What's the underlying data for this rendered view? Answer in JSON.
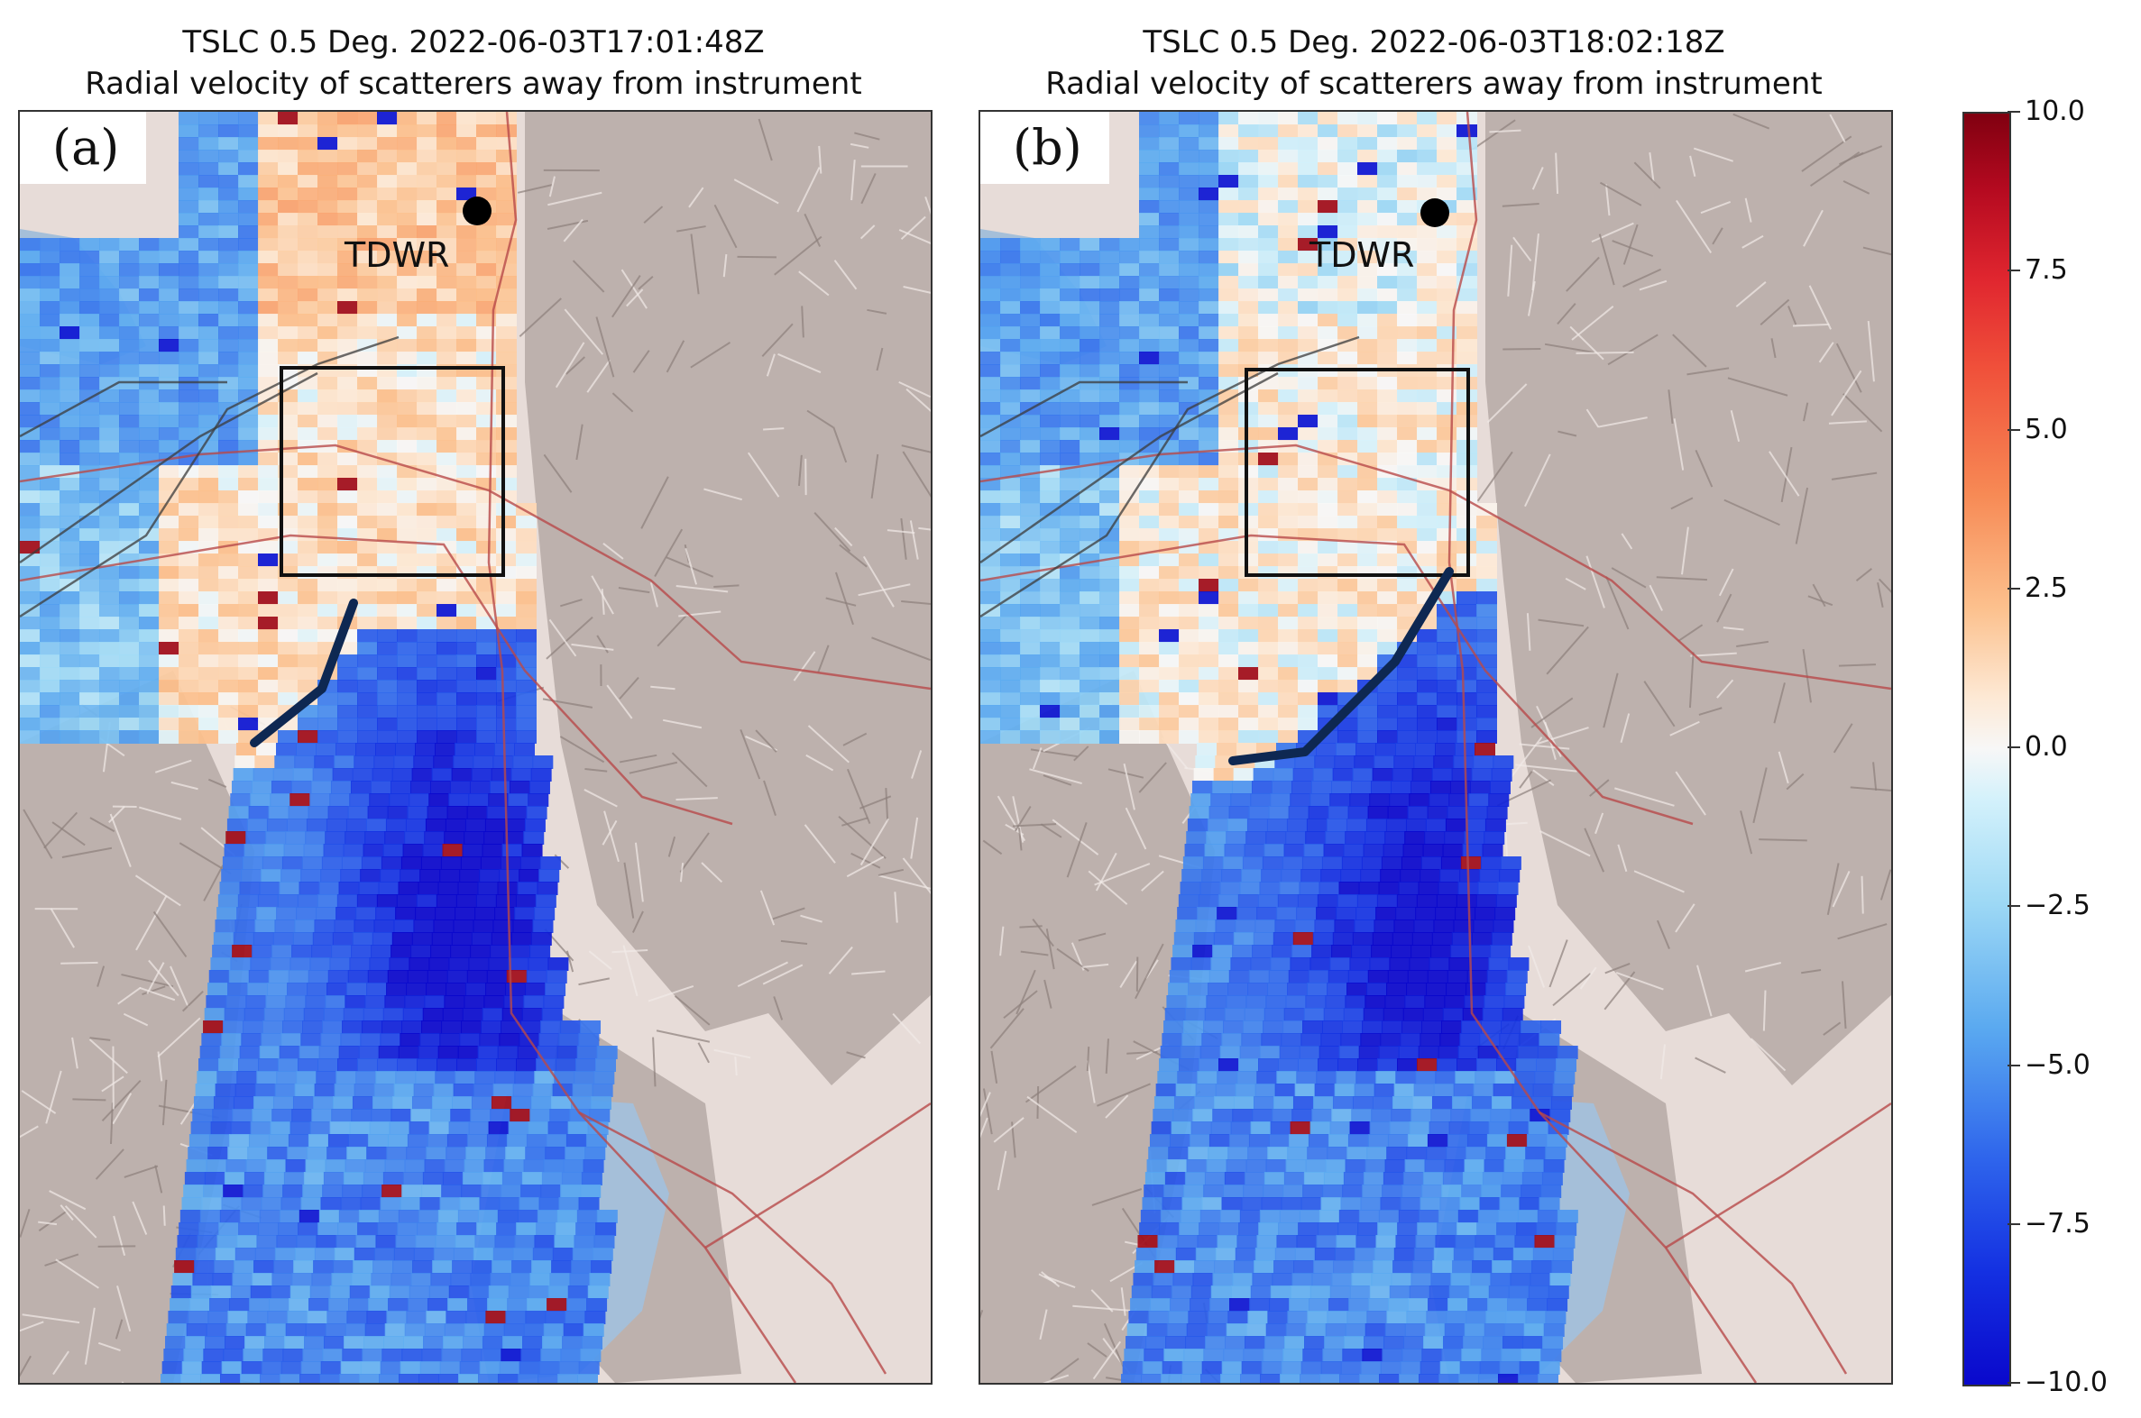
{
  "panels": [
    {
      "title_line1": "TSLC 0.5 Deg. 2022-06-03T17:01:48Z",
      "title_line2": "Radial velocity of scatterers away from instrument",
      "label": "(a)",
      "radar_label": "TDWR"
    },
    {
      "title_line1": "TSLC 0.5 Deg. 2022-06-03T18:02:18Z",
      "title_line2": "Radial velocity of scatterers away from instrument",
      "label": "(b)",
      "radar_label": "TDWR"
    }
  ],
  "colorbar": {
    "ticks": [
      "10.0",
      "7.5",
      "5.0",
      "2.5",
      "0.0",
      "−2.5",
      "−5.0",
      "−7.5",
      "−10.0"
    ],
    "max": 10.0,
    "min": -10.0,
    "colors": {
      "max": "#800010",
      "zero": "#f7f7f7",
      "min": "#0a08cc"
    }
  },
  "map_colors": {
    "terrain": "#e7dcd8",
    "mountains": "#b5a9a6",
    "water": "#a5bfd9",
    "roads": "#b84a4a",
    "front_line": "#0e2852"
  }
}
